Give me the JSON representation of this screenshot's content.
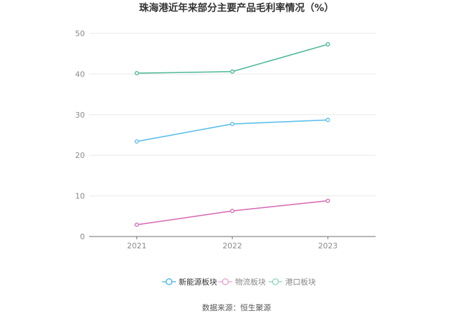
{
  "chart_data": {
    "type": "line",
    "title": "珠海港近年来部分主要产品毛利率情况（%）",
    "x": [
      "2021",
      "2022",
      "2023"
    ],
    "ylim": [
      0,
      50
    ],
    "yticks": [
      0,
      10,
      20,
      30,
      40,
      50
    ],
    "grid": true,
    "legend_position": "bottom",
    "series": [
      {
        "name": "新能源板块",
        "values": [
          23.4,
          27.7,
          28.7
        ],
        "color": "#5bbfea"
      },
      {
        "name": "物流板块",
        "values": [
          2.9,
          6.3,
          8.8
        ],
        "color": "#d86fb2"
      },
      {
        "name": "港口板块",
        "values": [
          40.2,
          40.6,
          47.3
        ],
        "color": "#4fba9b"
      }
    ],
    "source": "数据来源：恒生聚源"
  }
}
